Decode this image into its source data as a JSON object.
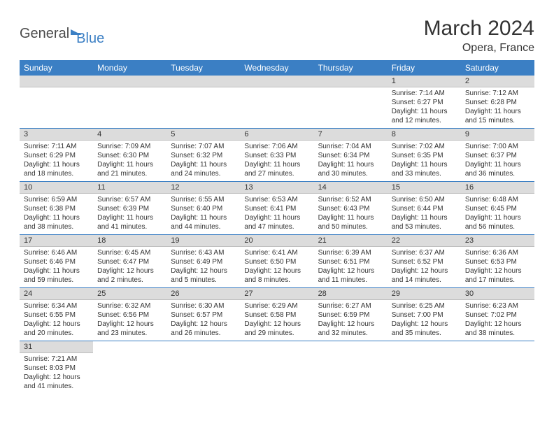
{
  "logo": {
    "general": "General",
    "blue": "Blue"
  },
  "title": "March 2024",
  "location": "Opera, France",
  "colors": {
    "header_bg": "#3b7fc4",
    "header_text": "#ffffff",
    "daynum_bg": "#dcdcdc",
    "row_border": "#3b7fc4",
    "text": "#333333",
    "background": "#ffffff"
  },
  "font": {
    "family": "Arial",
    "title_size": 30,
    "location_size": 16,
    "header_size": 12,
    "daynum_size": 11,
    "cell_size": 10
  },
  "columns": [
    "Sunday",
    "Monday",
    "Tuesday",
    "Wednesday",
    "Thursday",
    "Friday",
    "Saturday"
  ],
  "weeks": [
    [
      null,
      null,
      null,
      null,
      null,
      {
        "n": "1",
        "sr": "Sunrise: 7:14 AM",
        "ss": "Sunset: 6:27 PM",
        "dl": "Daylight: 11 hours and 12 minutes."
      },
      {
        "n": "2",
        "sr": "Sunrise: 7:12 AM",
        "ss": "Sunset: 6:28 PM",
        "dl": "Daylight: 11 hours and 15 minutes."
      }
    ],
    [
      {
        "n": "3",
        "sr": "Sunrise: 7:11 AM",
        "ss": "Sunset: 6:29 PM",
        "dl": "Daylight: 11 hours and 18 minutes."
      },
      {
        "n": "4",
        "sr": "Sunrise: 7:09 AM",
        "ss": "Sunset: 6:30 PM",
        "dl": "Daylight: 11 hours and 21 minutes."
      },
      {
        "n": "5",
        "sr": "Sunrise: 7:07 AM",
        "ss": "Sunset: 6:32 PM",
        "dl": "Daylight: 11 hours and 24 minutes."
      },
      {
        "n": "6",
        "sr": "Sunrise: 7:06 AM",
        "ss": "Sunset: 6:33 PM",
        "dl": "Daylight: 11 hours and 27 minutes."
      },
      {
        "n": "7",
        "sr": "Sunrise: 7:04 AM",
        "ss": "Sunset: 6:34 PM",
        "dl": "Daylight: 11 hours and 30 minutes."
      },
      {
        "n": "8",
        "sr": "Sunrise: 7:02 AM",
        "ss": "Sunset: 6:35 PM",
        "dl": "Daylight: 11 hours and 33 minutes."
      },
      {
        "n": "9",
        "sr": "Sunrise: 7:00 AM",
        "ss": "Sunset: 6:37 PM",
        "dl": "Daylight: 11 hours and 36 minutes."
      }
    ],
    [
      {
        "n": "10",
        "sr": "Sunrise: 6:59 AM",
        "ss": "Sunset: 6:38 PM",
        "dl": "Daylight: 11 hours and 38 minutes."
      },
      {
        "n": "11",
        "sr": "Sunrise: 6:57 AM",
        "ss": "Sunset: 6:39 PM",
        "dl": "Daylight: 11 hours and 41 minutes."
      },
      {
        "n": "12",
        "sr": "Sunrise: 6:55 AM",
        "ss": "Sunset: 6:40 PM",
        "dl": "Daylight: 11 hours and 44 minutes."
      },
      {
        "n": "13",
        "sr": "Sunrise: 6:53 AM",
        "ss": "Sunset: 6:41 PM",
        "dl": "Daylight: 11 hours and 47 minutes."
      },
      {
        "n": "14",
        "sr": "Sunrise: 6:52 AM",
        "ss": "Sunset: 6:43 PM",
        "dl": "Daylight: 11 hours and 50 minutes."
      },
      {
        "n": "15",
        "sr": "Sunrise: 6:50 AM",
        "ss": "Sunset: 6:44 PM",
        "dl": "Daylight: 11 hours and 53 minutes."
      },
      {
        "n": "16",
        "sr": "Sunrise: 6:48 AM",
        "ss": "Sunset: 6:45 PM",
        "dl": "Daylight: 11 hours and 56 minutes."
      }
    ],
    [
      {
        "n": "17",
        "sr": "Sunrise: 6:46 AM",
        "ss": "Sunset: 6:46 PM",
        "dl": "Daylight: 11 hours and 59 minutes."
      },
      {
        "n": "18",
        "sr": "Sunrise: 6:45 AM",
        "ss": "Sunset: 6:47 PM",
        "dl": "Daylight: 12 hours and 2 minutes."
      },
      {
        "n": "19",
        "sr": "Sunrise: 6:43 AM",
        "ss": "Sunset: 6:49 PM",
        "dl": "Daylight: 12 hours and 5 minutes."
      },
      {
        "n": "20",
        "sr": "Sunrise: 6:41 AM",
        "ss": "Sunset: 6:50 PM",
        "dl": "Daylight: 12 hours and 8 minutes."
      },
      {
        "n": "21",
        "sr": "Sunrise: 6:39 AM",
        "ss": "Sunset: 6:51 PM",
        "dl": "Daylight: 12 hours and 11 minutes."
      },
      {
        "n": "22",
        "sr": "Sunrise: 6:37 AM",
        "ss": "Sunset: 6:52 PM",
        "dl": "Daylight: 12 hours and 14 minutes."
      },
      {
        "n": "23",
        "sr": "Sunrise: 6:36 AM",
        "ss": "Sunset: 6:53 PM",
        "dl": "Daylight: 12 hours and 17 minutes."
      }
    ],
    [
      {
        "n": "24",
        "sr": "Sunrise: 6:34 AM",
        "ss": "Sunset: 6:55 PM",
        "dl": "Daylight: 12 hours and 20 minutes."
      },
      {
        "n": "25",
        "sr": "Sunrise: 6:32 AM",
        "ss": "Sunset: 6:56 PM",
        "dl": "Daylight: 12 hours and 23 minutes."
      },
      {
        "n": "26",
        "sr": "Sunrise: 6:30 AM",
        "ss": "Sunset: 6:57 PM",
        "dl": "Daylight: 12 hours and 26 minutes."
      },
      {
        "n": "27",
        "sr": "Sunrise: 6:29 AM",
        "ss": "Sunset: 6:58 PM",
        "dl": "Daylight: 12 hours and 29 minutes."
      },
      {
        "n": "28",
        "sr": "Sunrise: 6:27 AM",
        "ss": "Sunset: 6:59 PM",
        "dl": "Daylight: 12 hours and 32 minutes."
      },
      {
        "n": "29",
        "sr": "Sunrise: 6:25 AM",
        "ss": "Sunset: 7:00 PM",
        "dl": "Daylight: 12 hours and 35 minutes."
      },
      {
        "n": "30",
        "sr": "Sunrise: 6:23 AM",
        "ss": "Sunset: 7:02 PM",
        "dl": "Daylight: 12 hours and 38 minutes."
      }
    ],
    [
      {
        "n": "31",
        "sr": "Sunrise: 7:21 AM",
        "ss": "Sunset: 8:03 PM",
        "dl": "Daylight: 12 hours and 41 minutes."
      },
      null,
      null,
      null,
      null,
      null,
      null
    ]
  ]
}
